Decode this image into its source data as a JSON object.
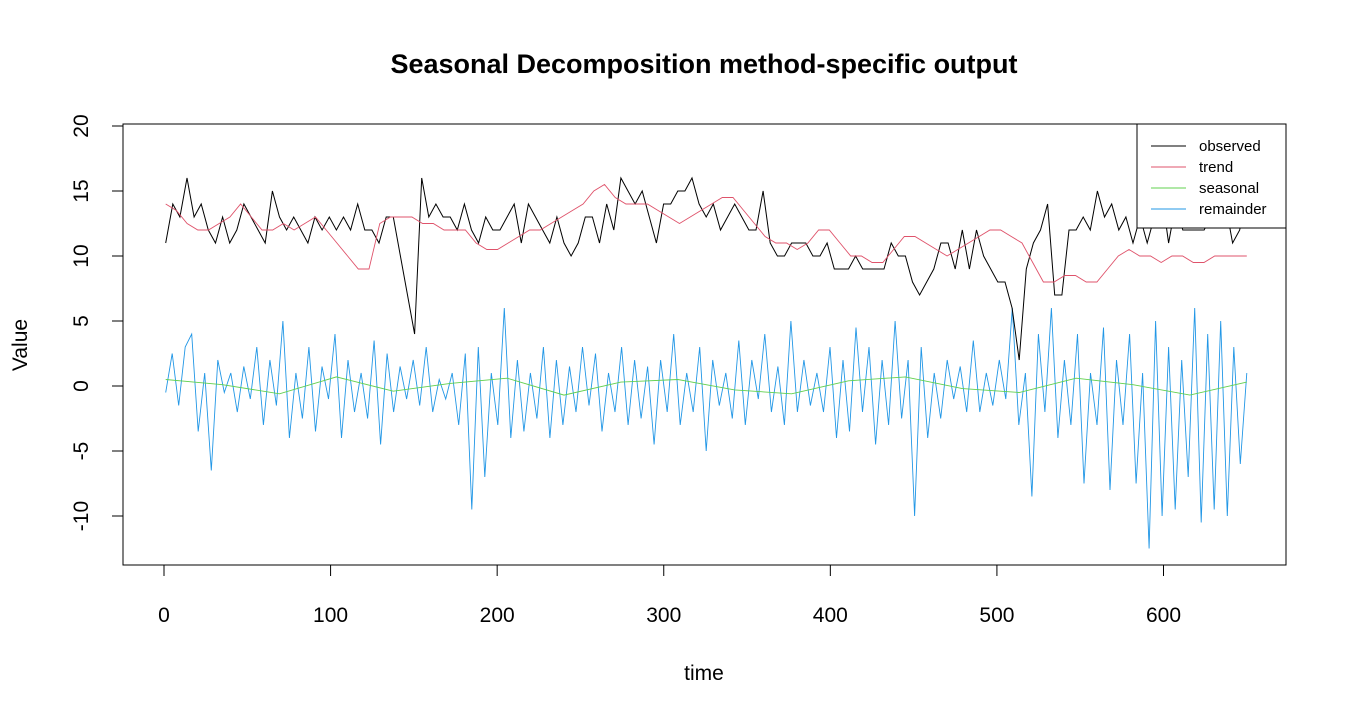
{
  "chart_data": {
    "type": "line",
    "title": "Seasonal Decomposition method-specific output",
    "xlabel": "time",
    "ylabel": "Value",
    "xlim": [
      0,
      650
    ],
    "ylim": [
      -13,
      20
    ],
    "x_ticks": [
      0,
      100,
      200,
      300,
      400,
      500,
      600
    ],
    "y_ticks": [
      -10,
      -5,
      0,
      5,
      10,
      15,
      20
    ],
    "x_tick_labels": [
      "0",
      "100",
      "200",
      "300",
      "400",
      "500",
      "600"
    ],
    "y_tick_labels": [
      "-10",
      "-5",
      "0",
      "5",
      "10",
      "15",
      "20"
    ],
    "legend_position": "top-right",
    "grid": false,
    "x_start": 1,
    "x_step": 5,
    "series": [
      {
        "name": "observed",
        "color": "#000000",
        "values": [
          11,
          14,
          13,
          16,
          13,
          14,
          12,
          11,
          13,
          11,
          12,
          14,
          13,
          12,
          11,
          15,
          13,
          12,
          13,
          12,
          11,
          13,
          12,
          13,
          12,
          13,
          12,
          14,
          12,
          12,
          11,
          13,
          13,
          10,
          7,
          4,
          16,
          13,
          14,
          13,
          13,
          12,
          14,
          12,
          11,
          13,
          12,
          12,
          13,
          14,
          11,
          14,
          13,
          12,
          11,
          13,
          11,
          10,
          11,
          13,
          13,
          11,
          14,
          12,
          16,
          15,
          14,
          15,
          13,
          11,
          14,
          14,
          15,
          15,
          16,
          14,
          13,
          14,
          12,
          13,
          14,
          13,
          12,
          12,
          15,
          11,
          10,
          10,
          11,
          11,
          11,
          10,
          10,
          11,
          9,
          9,
          9,
          10,
          9,
          9,
          9,
          9,
          11,
          10,
          10,
          8,
          7,
          8,
          9,
          11,
          11,
          9,
          12,
          9,
          12,
          10,
          9,
          8,
          8,
          6,
          2,
          9,
          11,
          12,
          14,
          7,
          7,
          12,
          12,
          13,
          12,
          15,
          13,
          14,
          12,
          13,
          11,
          13,
          11,
          13,
          15,
          11,
          14,
          12,
          12,
          12,
          12,
          13,
          14,
          14,
          11,
          12,
          15
        ]
      },
      {
        "name": "trend",
        "color": "#DF536B",
        "values": [
          14,
          13.5,
          12.5,
          12,
          12,
          12.5,
          13,
          14,
          13,
          12,
          12,
          12.5,
          12,
          12.5,
          13,
          12,
          11,
          10,
          9,
          9,
          12.5,
          13,
          13,
          13,
          12.5,
          12.5,
          12,
          12,
          12,
          11,
          10.5,
          10.5,
          11,
          11.5,
          12,
          12,
          12.5,
          13,
          13.5,
          14,
          15,
          15.5,
          14.5,
          14,
          14,
          14,
          13.5,
          13,
          12.5,
          13,
          13.5,
          14,
          14.5,
          14.5,
          13.5,
          12.5,
          11.5,
          11,
          11,
          10.5,
          11,
          12,
          12,
          11,
          10,
          10,
          9.5,
          9.5,
          10.5,
          11.5,
          11.5,
          11,
          10.5,
          10,
          10.5,
          11,
          11.5,
          12,
          12,
          11.5,
          11,
          9.5,
          8,
          8,
          8.5,
          8.5,
          8,
          8,
          9,
          10,
          10.5,
          10,
          10,
          9.5,
          10,
          10,
          9.5,
          9.5,
          10,
          10,
          10,
          10
        ]
      },
      {
        "name": "seasonal",
        "color": "#61D04F",
        "values": [
          0.5,
          0.1,
          -0.6,
          0.7,
          -0.4,
          0.2,
          0.6,
          -0.7,
          0.3,
          0.5,
          -0.3,
          -0.6,
          0.4,
          0.7,
          -0.2,
          -0.5,
          0.6,
          0.1,
          -0.7,
          0.3
        ]
      },
      {
        "name": "remainder",
        "color": "#2297E6",
        "values": [
          -0.5,
          2.5,
          -1.5,
          3,
          4,
          -3.5,
          1,
          -6.5,
          2,
          -0.5,
          1,
          -2,
          1.5,
          -1,
          3,
          -3,
          2,
          -1.5,
          5,
          -4,
          1,
          -2.5,
          3,
          -3.5,
          1.5,
          -1,
          4,
          -4,
          2,
          -2,
          1,
          -2.5,
          3.5,
          -4.5,
          2.5,
          -2,
          1.5,
          -1,
          2,
          -1.5,
          3,
          -2,
          0.5,
          -1,
          1,
          -3,
          2.5,
          -9.5,
          3,
          -7,
          1,
          -3,
          6,
          -4,
          2,
          -3.5,
          1,
          -2.5,
          3,
          -4,
          2,
          -3,
          1.5,
          -2,
          3,
          -1.5,
          2.5,
          -3.5,
          1,
          -2,
          3,
          -3,
          2,
          -2.5,
          1.5,
          -4.5,
          2,
          -2,
          4,
          -3,
          1,
          -2,
          3,
          -5,
          2,
          -1.5,
          1,
          -2.5,
          3.5,
          -3,
          2,
          -1,
          4,
          -2,
          1.5,
          -3,
          5,
          -2,
          2,
          -1.5,
          1,
          -2,
          3,
          -4,
          2,
          -3.5,
          4.5,
          -2,
          3,
          -4.5,
          2,
          -3,
          5,
          -2.5,
          2,
          -10,
          3,
          -4,
          1,
          -2.5,
          2,
          -1,
          1.5,
          -2,
          3.5,
          -2,
          1,
          -1.5,
          2,
          -1,
          6,
          -3,
          1,
          -8.5,
          4,
          -2,
          6,
          -4,
          2,
          -3,
          4,
          -7.5,
          1,
          -3,
          4.5,
          -8,
          2,
          -3,
          4,
          -7.5,
          1,
          -12.5,
          5,
          -10,
          3,
          -9.5,
          2,
          -7,
          6,
          -10.5,
          4,
          -9.5,
          5,
          -10,
          3,
          -6,
          1
        ]
      }
    ]
  }
}
